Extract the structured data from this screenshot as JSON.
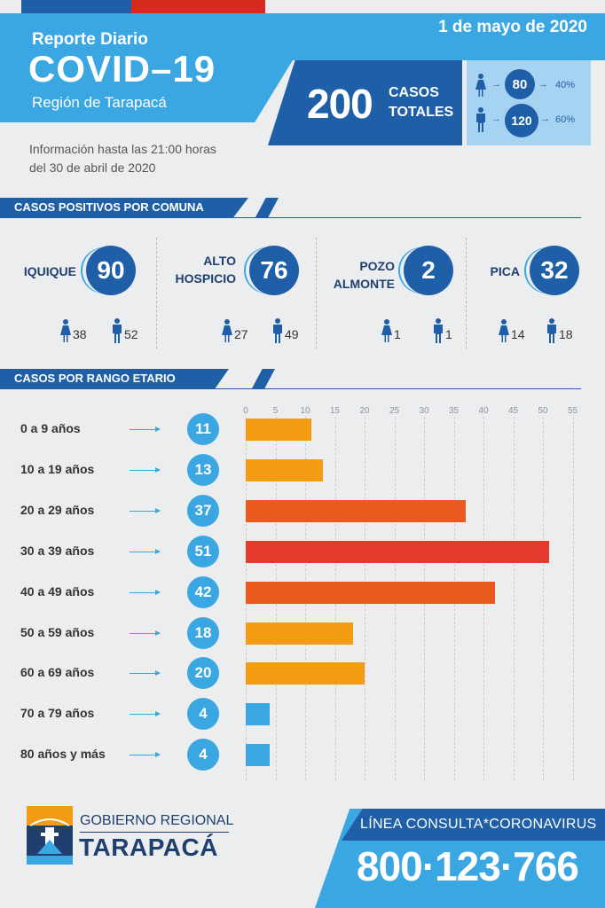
{
  "header": {
    "title_small": "Reporte Diario",
    "title_large": "COVID–19",
    "region": "Región de Tarapacá",
    "date": "1 de mayo de 2020",
    "info_line1": "Información hasta las 21:00 horas",
    "info_line2": "del 30 de abril de 2020"
  },
  "totals": {
    "total": "200",
    "total_label_1": "CASOS",
    "total_label_2": "TOTALES",
    "women": "80",
    "women_pct": "40%",
    "men": "120",
    "men_pct": "60%"
  },
  "colors": {
    "flag_blue": "#1f5fa8",
    "flag_red": "#d52b1e",
    "light_blue": "#3aa6e2",
    "dark_blue": "#1f5fa8",
    "orange": "#f39c12",
    "orange_red": "#ea5a1f",
    "red": "#e53b2c"
  },
  "section_comunas": {
    "title": "CASOS POSITIVOS POR COMUNA",
    "items": [
      {
        "name_1": "IQUIQUE",
        "name_2": "",
        "total": "90",
        "women": "38",
        "men": "52"
      },
      {
        "name_1": "ALTO",
        "name_2": "HOSPICIO",
        "total": "76",
        "women": "27",
        "men": "49"
      },
      {
        "name_1": "POZO",
        "name_2": "ALMONTE",
        "total": "2",
        "women": "1",
        "men": "1"
      },
      {
        "name_1": "PICA",
        "name_2": "",
        "total": "32",
        "women": "14",
        "men": "18"
      }
    ]
  },
  "section_age": {
    "title": "CASOS POR RANGO ETARIO"
  },
  "chart_data": {
    "type": "bar",
    "orientation": "horizontal",
    "title": "CASOS POR RANGO ETARIO",
    "categories": [
      "0 a 9 años",
      "10 a 19 años",
      "20 a 29 años",
      "30 a 39 años",
      "40 a 49 años",
      "50 a 59 años",
      "60 a 69 años",
      "70 a 79 años",
      "80 años y más"
    ],
    "values": [
      11,
      13,
      37,
      51,
      42,
      18,
      20,
      4,
      4
    ],
    "xlim": [
      0,
      55
    ],
    "xticks": [
      "0",
      "5",
      "10",
      "15",
      "20",
      "25",
      "30",
      "35",
      "40",
      "45",
      "50",
      "55"
    ],
    "grid": true,
    "bar_colors": [
      "#f39c12",
      "#f39c12",
      "#ea5a1f",
      "#e53b2c",
      "#ea5a1f",
      "#f39c12",
      "#f39c12",
      "#3aa6e2",
      "#3aa6e2"
    ]
  },
  "footer": {
    "gov_line1": "GOBIERNO REGIONAL",
    "gov_line2": "TARAPACÁ",
    "hotline_label": "LÍNEA CONSULTA*CORONAVIRUS",
    "hotline_number": "800·123·766"
  }
}
